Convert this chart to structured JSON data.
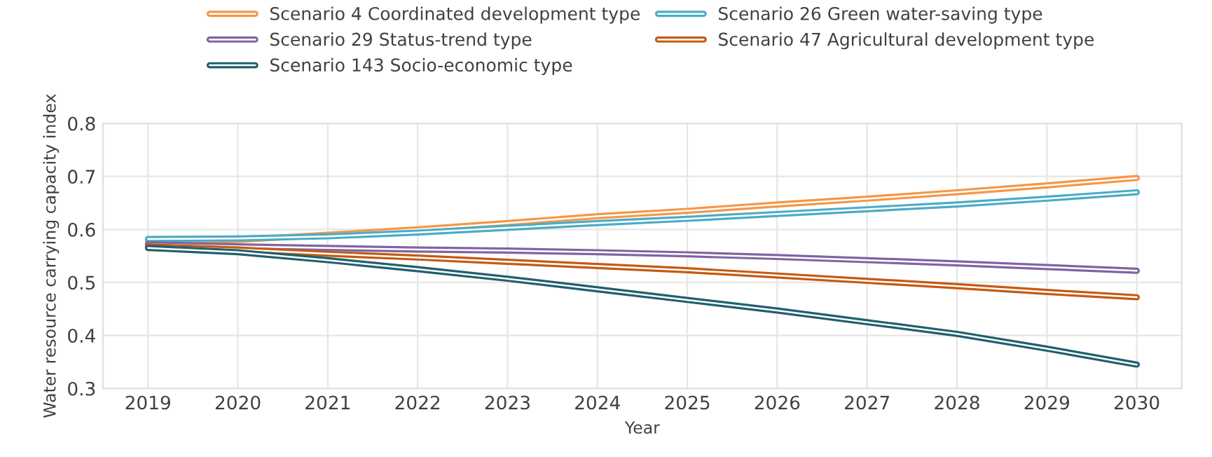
{
  "chart_data": {
    "type": "line",
    "xlabel": "Year",
    "ylabel": "Water resource carrying capacity index",
    "categories": [
      "2019",
      "2020",
      "2021",
      "2022",
      "2023",
      "2024",
      "2025",
      "2026",
      "2027",
      "2028",
      "2029",
      "2030"
    ],
    "ylim": [
      0.3,
      0.8
    ],
    "yticks": [
      {
        "value": 0.3,
        "label": "0.3"
      },
      {
        "value": 0.4,
        "label": "0.4"
      },
      {
        "value": 0.5,
        "label": "0.5"
      },
      {
        "value": 0.6,
        "label": "0.6"
      },
      {
        "value": 0.7,
        "label": "0.7"
      },
      {
        "value": 0.8,
        "label": "0.8"
      }
    ],
    "grid": true,
    "legend": "top",
    "marker": "none",
    "line_style": "solid",
    "series": [
      {
        "name": "Scenario 4 Coordinated development type",
        "color": "#f79646",
        "values": [
          0.578,
          0.58,
          0.59,
          0.6,
          0.612,
          0.625,
          0.635,
          0.647,
          0.658,
          0.67,
          0.683,
          0.697
        ]
      },
      {
        "name": "Scenario 26 Green water-saving type",
        "color": "#4bacc6",
        "values": [
          0.582,
          0.583,
          0.587,
          0.594,
          0.603,
          0.612,
          0.62,
          0.629,
          0.638,
          0.647,
          0.658,
          0.67
        ]
      },
      {
        "name": "Scenario 29 Status-trend type",
        "color": "#8064a2",
        "values": [
          0.572,
          0.568,
          0.565,
          0.562,
          0.56,
          0.557,
          0.553,
          0.548,
          0.542,
          0.536,
          0.529,
          0.522
        ]
      },
      {
        "name": "Scenario 47 Agricultural development type",
        "color": "#c55a11",
        "values": [
          0.568,
          0.562,
          0.554,
          0.547,
          0.539,
          0.531,
          0.523,
          0.513,
          0.503,
          0.493,
          0.482,
          0.472
        ]
      },
      {
        "name": "Scenario 143 Socio-economic type",
        "color": "#215f6f",
        "values": [
          0.565,
          0.557,
          0.542,
          0.525,
          0.507,
          0.487,
          0.467,
          0.447,
          0.425,
          0.403,
          0.375,
          0.345
        ]
      }
    ]
  }
}
